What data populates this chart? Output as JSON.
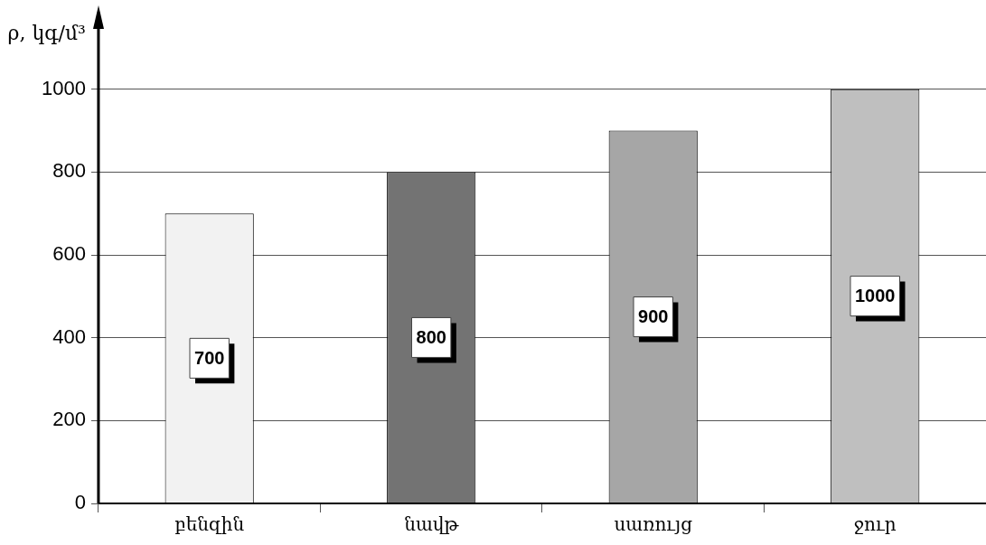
{
  "chart_data": {
    "type": "bar",
    "ylabel": "ρ, կգ/մ³",
    "categories": [
      "բենզին",
      "նավթ",
      "սառույց",
      "ջուր"
    ],
    "values": [
      700,
      800,
      900,
      1000
    ],
    "colors": [
      "#f2f2f2",
      "#737373",
      "#a6a6a6",
      "#bfbfbf"
    ],
    "ylim": [
      0,
      1150
    ],
    "yticks": [
      0,
      200,
      400,
      600,
      800,
      1000
    ],
    "grid": "y",
    "legend": false,
    "data_labels": true
  }
}
